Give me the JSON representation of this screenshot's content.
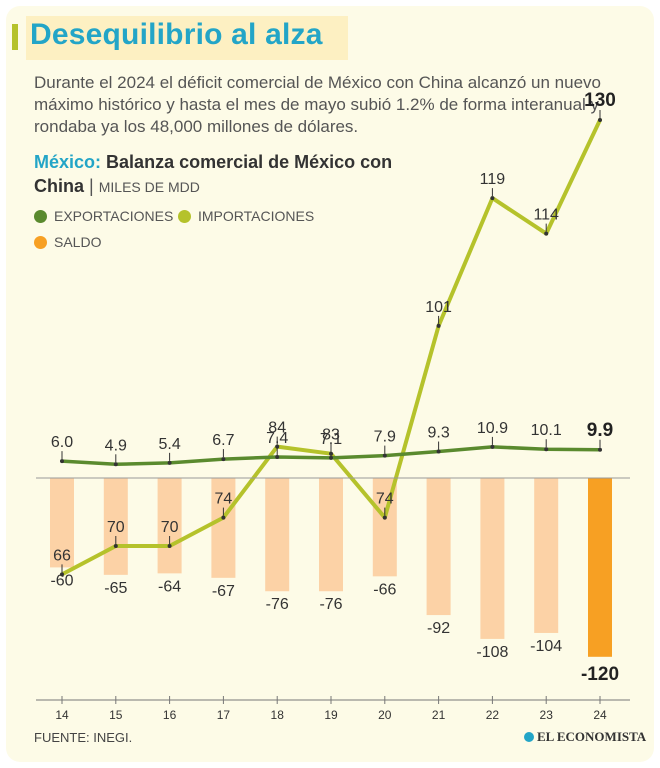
{
  "headline": "Desequilibrio al alza",
  "description": "Durante el 2024 el déficit comercial de México con China alcanzó un nuevo máximo histórico y hasta el mes de mayo subió 1.2% de forma interanual y rondaba ya los 48,000 millones de dólares.",
  "subtitle": {
    "country": "México:",
    "text": "Balanza comercial de México con China",
    "separator": "|",
    "units": "MILES DE MDD"
  },
  "legend": {
    "exports": "EXPORTACIONES",
    "imports": "IMPORTACIONES",
    "balance": "SALDO"
  },
  "colors": {
    "exports": "#5a8a2e",
    "imports": "#b5c22b",
    "balance": "#fcd2a6",
    "balance_highlight": "#f7a023",
    "accent": "#23a5c7"
  },
  "source": "FUENTE: INEGI.",
  "brand": "EL ECONOMISTA",
  "chart_data": {
    "type": "line",
    "categories": [
      "14",
      "15",
      "16",
      "17",
      "18",
      "19",
      "20",
      "21",
      "22",
      "23",
      "24"
    ],
    "series": [
      {
        "name": "EXPORTACIONES",
        "type": "line",
        "values": [
          6.0,
          4.9,
          5.4,
          6.7,
          7.4,
          7.1,
          7.9,
          9.3,
          10.9,
          10.1,
          9.9
        ],
        "labels": [
          "6.0",
          "4.9",
          "5.4",
          "6.7",
          "7.4",
          "7.1",
          "7.9",
          "9.3",
          "10.9",
          "10.1",
          "9.9"
        ]
      },
      {
        "name": "IMPORTACIONES",
        "type": "line",
        "values": [
          66,
          70,
          70,
          74,
          84,
          83,
          74,
          101,
          119,
          114,
          130
        ],
        "labels": [
          "66",
          "70",
          "70",
          "74",
          "84",
          "83",
          "74",
          "101",
          "119",
          "114",
          "130"
        ]
      },
      {
        "name": "SALDO",
        "type": "bar",
        "values": [
          -60,
          -65,
          -64,
          -67,
          -76,
          -76,
          -66,
          -92,
          -108,
          -104,
          -120
        ],
        "labels": [
          "-60",
          "-65",
          "-64",
          "-67",
          "-76",
          "-76",
          "-66",
          "-92",
          "-108",
          "-104",
          "-120"
        ]
      }
    ],
    "highlight_last": true
  }
}
